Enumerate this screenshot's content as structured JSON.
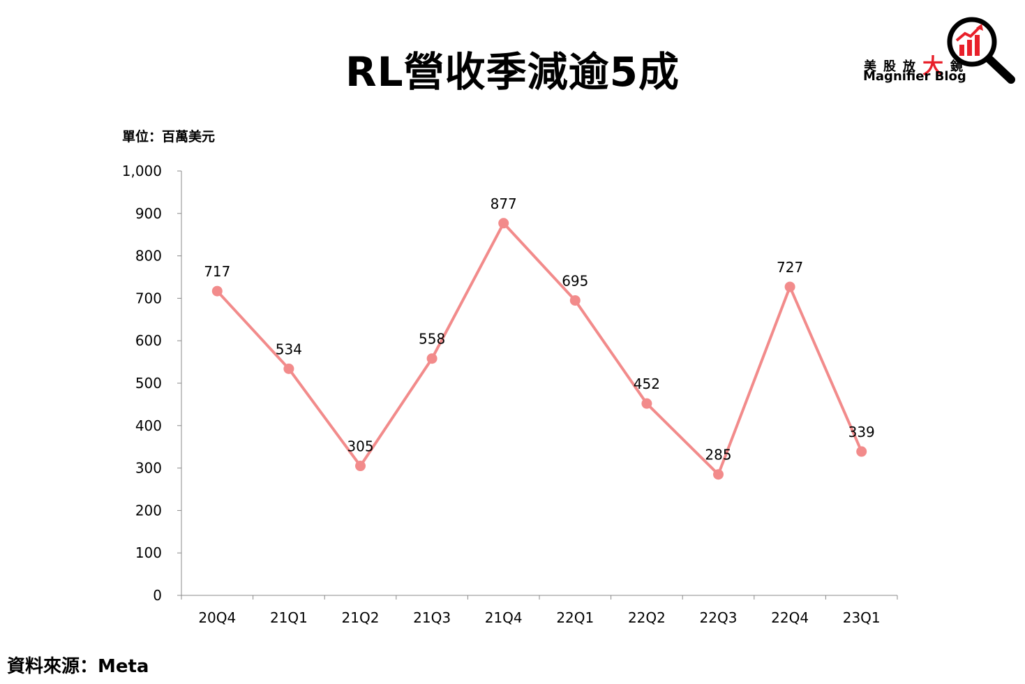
{
  "title": "RL營收季減逾5成",
  "unit_label": "單位：百萬美元",
  "source": "資料來源：Meta",
  "logo": {
    "cn_text": "美股放",
    "cn_big": "大",
    "cn_end": "鏡",
    "en_text": "Magnifier Blog",
    "icon": "magnifier-chart-icon",
    "accent_color": "#e8202a"
  },
  "chart_data": {
    "type": "line",
    "title": "RL營收季減逾5成",
    "xlabel": "",
    "ylabel": "單位：百萬美元",
    "categories": [
      "20Q4",
      "21Q1",
      "21Q2",
      "21Q3",
      "21Q4",
      "22Q1",
      "22Q2",
      "22Q3",
      "22Q4",
      "23Q1"
    ],
    "series": [
      {
        "values": [
          717,
          534,
          305,
          558,
          877,
          695,
          452,
          285,
          727,
          339
        ],
        "color": "#f28b8b"
      }
    ],
    "data_labels": [
      "717",
      "534",
      "305",
      "558",
      "877",
      "695",
      "452",
      "285",
      "727",
      "339"
    ],
    "ylim": [
      0,
      1000
    ],
    "yticks": [
      0,
      100,
      200,
      300,
      400,
      500,
      600,
      700,
      800,
      900,
      1000
    ],
    "ytick_labels": [
      "0",
      "100",
      "200",
      "300",
      "400",
      "500",
      "600",
      "700",
      "800",
      "900",
      "1,000"
    ],
    "grid": false,
    "legend": "none"
  }
}
